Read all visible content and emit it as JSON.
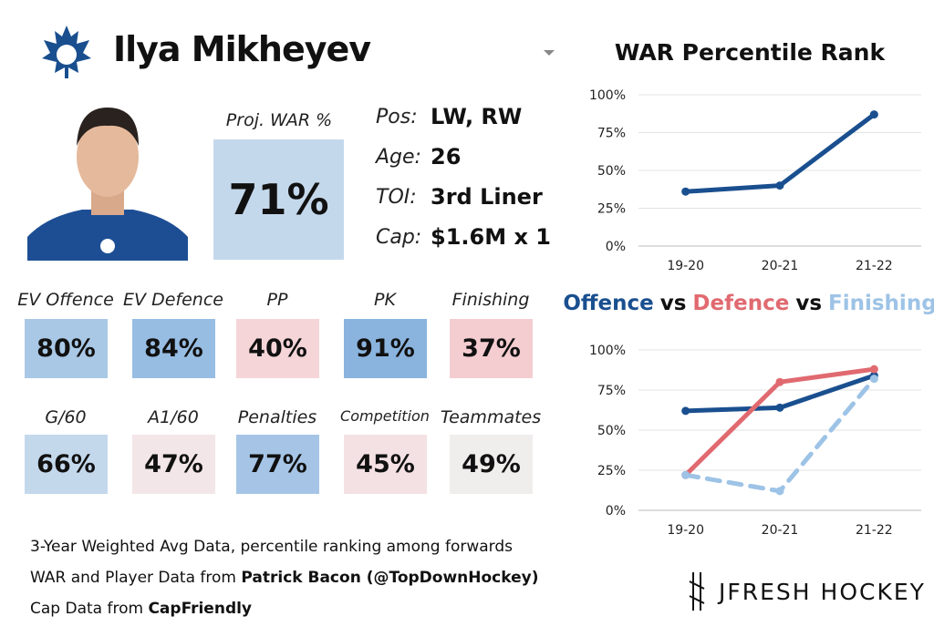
{
  "header": {
    "player_name": "Ilya Mikheyev"
  },
  "projection": {
    "label": "Proj. WAR %",
    "value": "71%",
    "color": "#c4d8ec"
  },
  "bio": [
    {
      "label": "Pos:",
      "value": "LW, RW"
    },
    {
      "label": "Age:",
      "value": "26"
    },
    {
      "label": "TOI:",
      "value": "3rd Liner"
    },
    {
      "label": "Cap:",
      "value": "$1.6M x 1"
    }
  ],
  "tiles": [
    {
      "label": "EV Offence",
      "value": "80%",
      "color": "#a9c8e6"
    },
    {
      "label": "EV Defence",
      "value": "84%",
      "color": "#97bde3"
    },
    {
      "label": "PP",
      "value": "40%",
      "color": "#f5d5d8"
    },
    {
      "label": "PK",
      "value": "91%",
      "color": "#8ab4de"
    },
    {
      "label": "Finishing",
      "value": "37%",
      "color": "#f4cdd1"
    },
    {
      "label": "G/60",
      "value": "66%",
      "color": "#c4d8ec"
    },
    {
      "label": "A1/60",
      "value": "47%",
      "color": "#f3e6e8"
    },
    {
      "label": "Penalties",
      "value": "77%",
      "color": "#a6c5e6"
    },
    {
      "label": "Competition",
      "value": "45%",
      "color": "#f3e1e4"
    },
    {
      "label": "Teammates",
      "value": "49%",
      "color": "#f0eded"
    }
  ],
  "footer": {
    "line1": "3-Year Weighted Avg Data, percentile ranking among forwards",
    "line2_text": "WAR and Player Data from ",
    "line2_bold": "Patrick Bacon (@TopDownHockey)",
    "line3_text": "Cap Data from ",
    "line3_bold": "CapFriendly",
    "brand": "JFRESH HOCKEY"
  },
  "chart_data": [
    {
      "type": "line",
      "title": "WAR Percentile Rank",
      "categories": [
        "19-20",
        "20-21",
        "21-22"
      ],
      "series": [
        {
          "name": "WAR",
          "color": "#1a4f8f",
          "style": "solid",
          "values": [
            36,
            40,
            87
          ]
        }
      ],
      "ylim": [
        0,
        100
      ],
      "yticks": [
        {
          "value": 0,
          "label": "0%"
        },
        {
          "value": 25,
          "label": "25%"
        },
        {
          "value": 50,
          "label": "50%"
        },
        {
          "value": 75,
          "label": "75%"
        },
        {
          "value": 100,
          "label": "100%"
        }
      ],
      "grid": true
    },
    {
      "type": "line",
      "title_joiner": "vs",
      "categories": [
        "19-20",
        "20-21",
        "21-22"
      ],
      "series": [
        {
          "name": "Offence",
          "color": "#1a4f8f",
          "style": "solid",
          "values": [
            62,
            64,
            84
          ]
        },
        {
          "name": "Defence",
          "color": "#e06a70",
          "style": "solid",
          "values": [
            22,
            80,
            88
          ]
        },
        {
          "name": "Finishing",
          "color": "#9dc3e6",
          "style": "dashed",
          "values": [
            22,
            12,
            82
          ]
        }
      ],
      "ylim": [
        0,
        100
      ],
      "yticks": [
        {
          "value": 0,
          "label": "0%"
        },
        {
          "value": 25,
          "label": "25%"
        },
        {
          "value": 50,
          "label": "50%"
        },
        {
          "value": 75,
          "label": "75%"
        },
        {
          "value": 100,
          "label": "100%"
        }
      ],
      "grid": true
    }
  ]
}
